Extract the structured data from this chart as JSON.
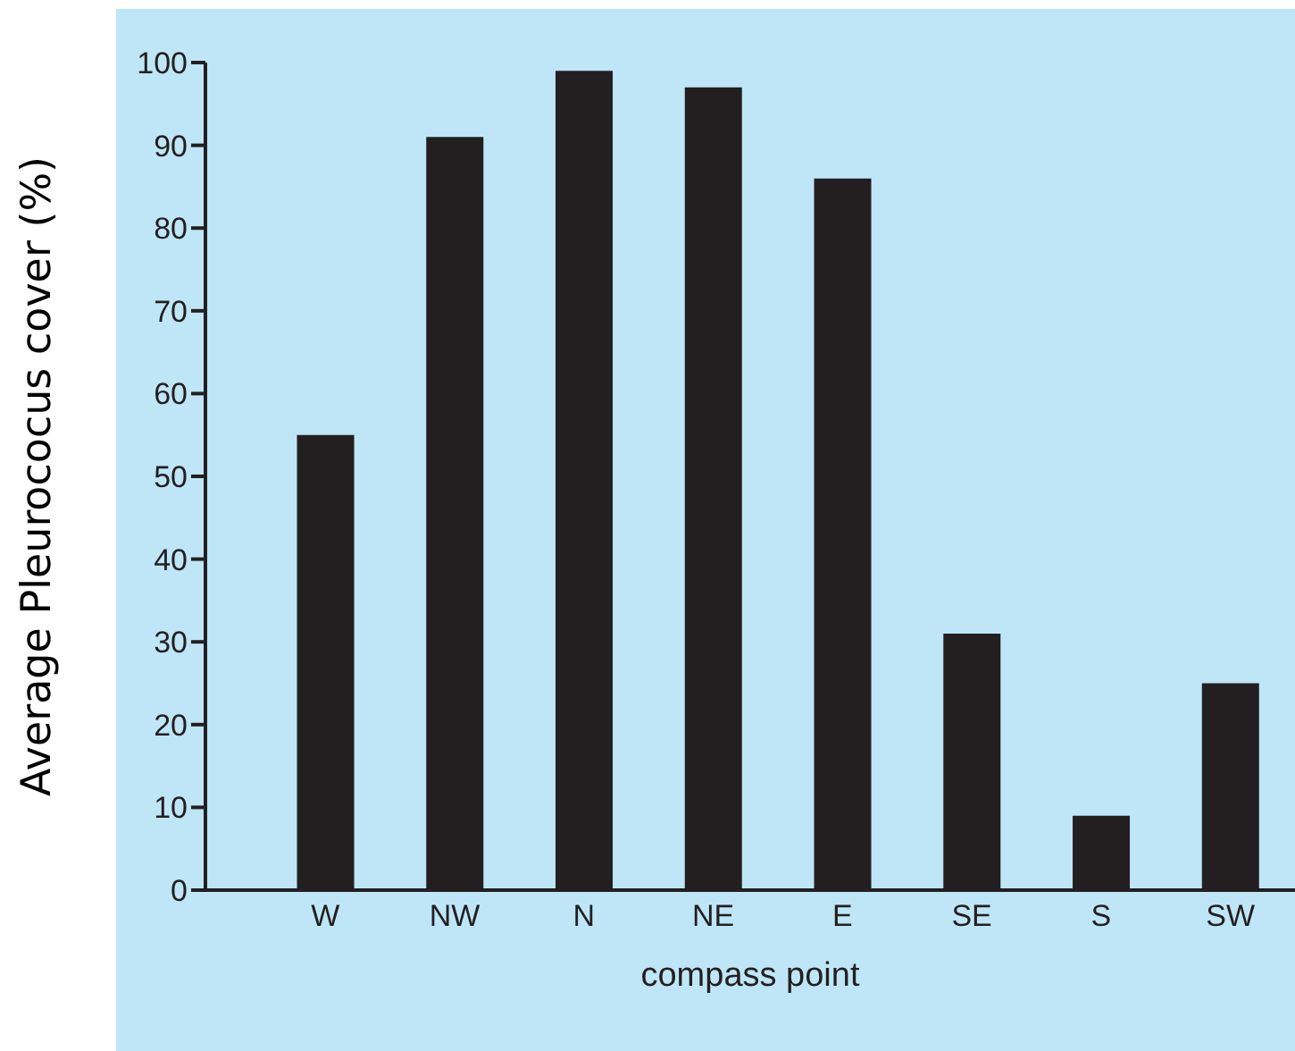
{
  "chart_data": {
    "type": "bar",
    "xlabel": "compass point",
    "ylabel": "Average Pleurococus cover (%)",
    "categories": [
      "W",
      "NW",
      "N",
      "NE",
      "E",
      "SE",
      "S",
      "SW"
    ],
    "values": [
      55,
      91,
      99,
      97,
      86,
      31,
      9,
      25
    ],
    "color": "#231f20",
    "ylim": [
      0,
      100
    ],
    "yticks": [
      0,
      10,
      20,
      30,
      40,
      50,
      60,
      70,
      80,
      90,
      100
    ],
    "grid": false
  }
}
